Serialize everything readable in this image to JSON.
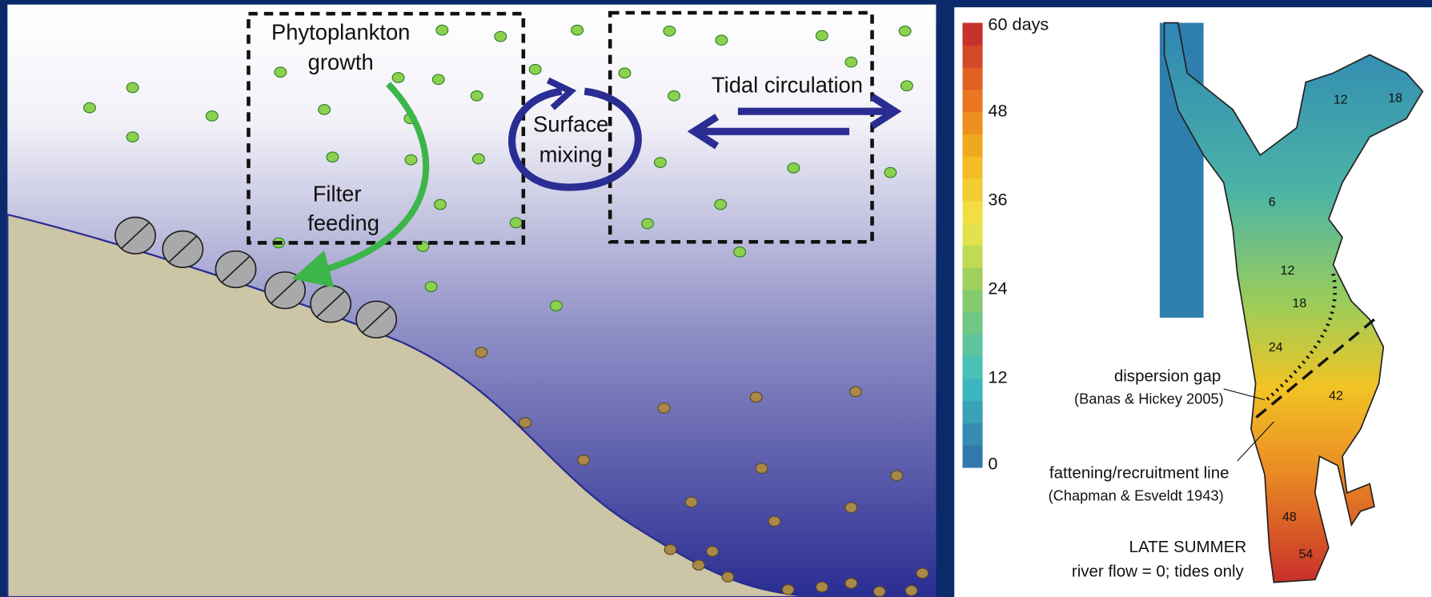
{
  "diagram": {
    "labels": {
      "phytoplankton": "Phytoplankton",
      "growth": "growth",
      "filter": "Filter",
      "feeding": "feeding",
      "surface": "Surface",
      "mixing": "mixing",
      "tidal": "Tidal circulation"
    },
    "colorbar": {
      "range": [
        0,
        60
      ],
      "ticks": [
        0,
        12,
        24,
        36,
        48,
        {
          "value": 60,
          "label": "60 days"
        }
      ]
    },
    "map": {
      "contour_labels": [
        "12",
        "18",
        "6",
        "12",
        "18",
        "24",
        "42",
        "48",
        "54"
      ],
      "dispersion_gap": "dispersion gap",
      "dispersion_ref": "(Banas & Hickey 2005)",
      "fattening_line": "fattening/recruitment line",
      "fattening_ref": "(Chapman & Esveldt 1943)",
      "season": "LATE SUMMER",
      "conditions": "river flow = 0; tides only"
    }
  }
}
